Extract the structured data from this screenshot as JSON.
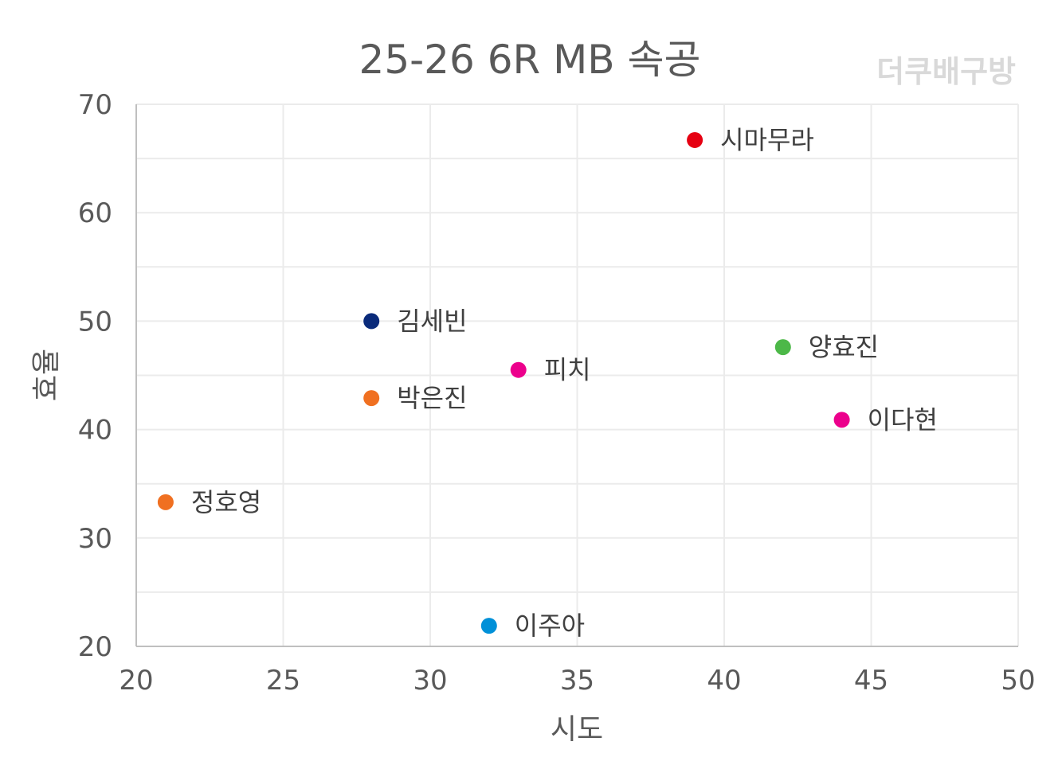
{
  "chart_data": {
    "type": "scatter",
    "title": "25-26  6R MB 속공",
    "watermark": "더쿠배구방",
    "xlabel": "시도",
    "ylabel": "효율",
    "xlim": [
      20,
      50
    ],
    "ylim": [
      20,
      70
    ],
    "x_ticks": [
      "20",
      "25",
      "30",
      "35",
      "40",
      "45",
      "50"
    ],
    "y_ticks": [
      "20",
      "30",
      "40",
      "50",
      "60",
      "70"
    ],
    "grid": true,
    "points": [
      {
        "label": "시마무라",
        "x": 39,
        "y": 66.7,
        "color": "#e60012"
      },
      {
        "label": "김세빈",
        "x": 28,
        "y": 50.0,
        "color": "#0a2a7a"
      },
      {
        "label": "양효진",
        "x": 42,
        "y": 47.6,
        "color": "#4cb848"
      },
      {
        "label": "피치",
        "x": 33,
        "y": 45.5,
        "color": "#ec008c"
      },
      {
        "label": "박은진",
        "x": 28,
        "y": 42.9,
        "color": "#f07021"
      },
      {
        "label": "이다현",
        "x": 44,
        "y": 40.9,
        "color": "#ec008c"
      },
      {
        "label": "정호영",
        "x": 21,
        "y": 33.3,
        "color": "#f07021"
      },
      {
        "label": "이주아",
        "x": 32,
        "y": 21.9,
        "color": "#0090d8"
      }
    ]
  }
}
